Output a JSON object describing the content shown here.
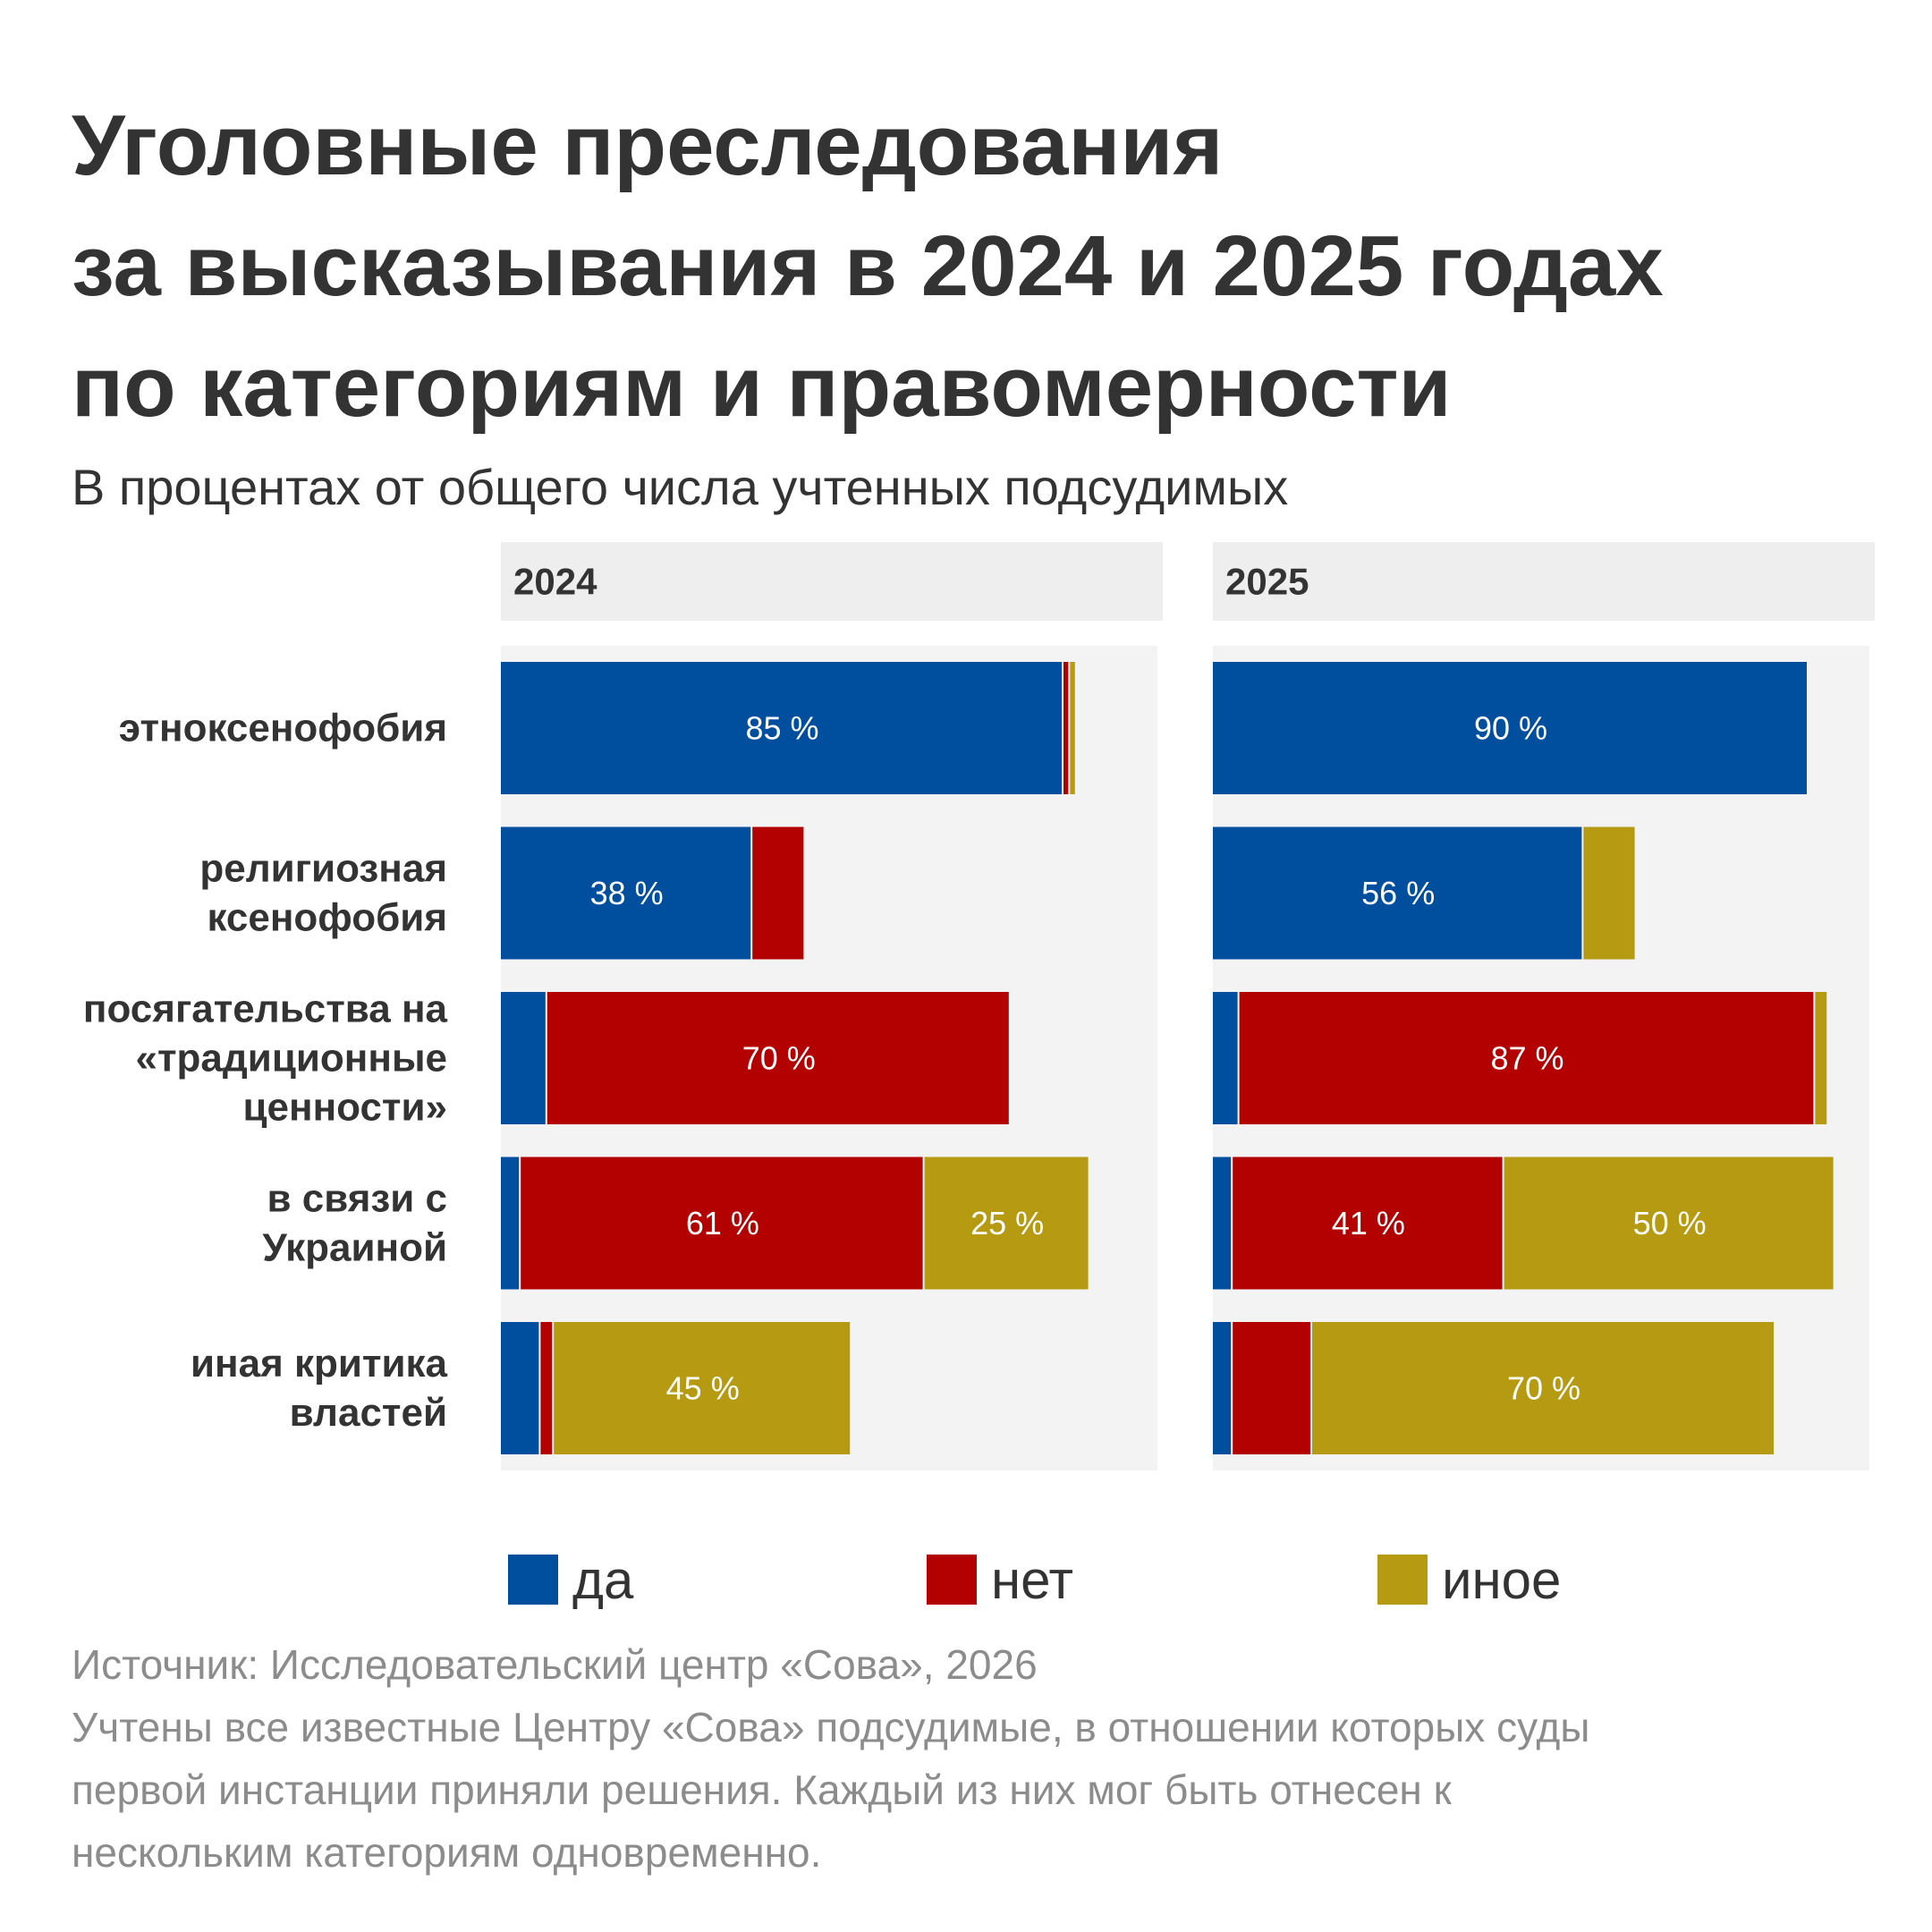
{
  "title_lines": [
    "Уголовные преследования",
    "за высказывания в 2024 и 2025 годах",
    "по категориям и правомерности"
  ],
  "subtitle": "В процентах от общего числа учтенных подсудимых",
  "colors": {
    "da": "#004f9f",
    "net": "#b30000",
    "inoe": "#b59a12",
    "panel_bg": "#f3f3f3",
    "header_bg": "#eeeeee"
  },
  "legend": [
    {
      "label": "да",
      "color": "#004f9f"
    },
    {
      "label": "нет",
      "color": "#b30000"
    },
    {
      "label": "иное",
      "color": "#b59a12"
    }
  ],
  "notes": {
    "source": "Источник: Исследовательский центр «Сова», 2026",
    "line1": "Учтены все известные Центру «Сова» подсудимые, в отношении которых суды",
    "line2": "первой инстанции приняли решения. Каждый из них мог быть отнесен к",
    "line3": "нескольким категориям одновременно."
  },
  "chart_data": {
    "type": "bar",
    "stacked": true,
    "orientation": "horizontal",
    "xlim": [
      0,
      100
    ],
    "categories": [
      [
        "этноксенофобия"
      ],
      [
        "религиозная",
        "ксенофобия"
      ],
      [
        "посягательства на",
        "«традиционные",
        "ценности»"
      ],
      [
        "в связи с",
        "Украиной"
      ],
      [
        "иная критика",
        "властей"
      ]
    ],
    "panels": [
      {
        "title": "2024",
        "series": [
          {
            "name": "да",
            "values": [
              85,
              38,
              7,
              3,
              6
            ]
          },
          {
            "name": "нет",
            "values": [
              1,
              8,
              70,
              61,
              2
            ]
          },
          {
            "name": "иное",
            "values": [
              1,
              0,
              0,
              25,
              45
            ]
          }
        ],
        "labels": [
          [
            "85 %",
            "",
            ""
          ],
          [
            "38 %",
            "",
            ""
          ],
          [
            "",
            "70 %",
            ""
          ],
          [
            "",
            "61 %",
            "25 %"
          ],
          [
            "",
            "",
            "45 %"
          ]
        ]
      },
      {
        "title": "2025",
        "series": [
          {
            "name": "да",
            "values": [
              90,
              56,
              4,
              3,
              3
            ]
          },
          {
            "name": "нет",
            "values": [
              0,
              0,
              87,
              41,
              12
            ]
          },
          {
            "name": "иное",
            "values": [
              0,
              8,
              2,
              50,
              70
            ]
          }
        ],
        "labels": [
          [
            "90 %",
            "",
            ""
          ],
          [
            "56 %",
            "",
            ""
          ],
          [
            "",
            "87 %",
            ""
          ],
          [
            "",
            "41 %",
            "50 %"
          ],
          [
            "",
            "",
            "70 %"
          ]
        ]
      }
    ]
  }
}
